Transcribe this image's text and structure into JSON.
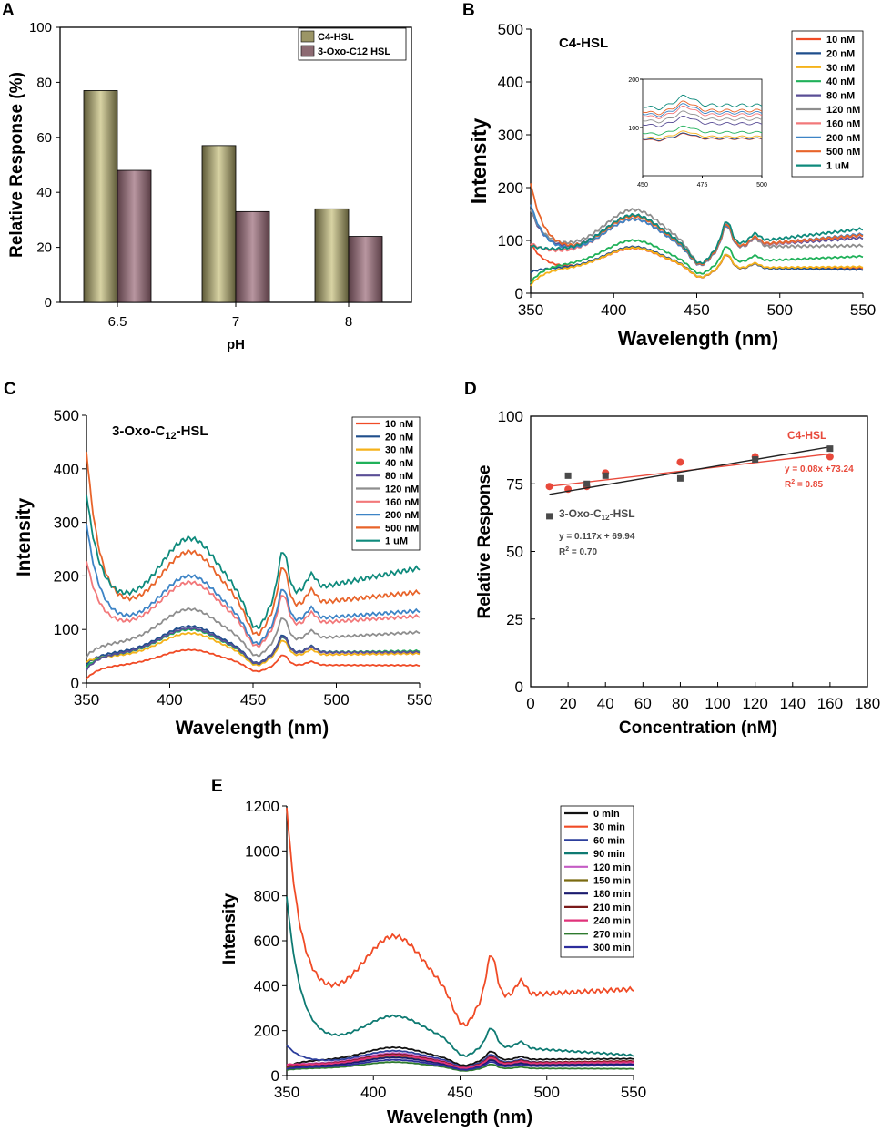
{
  "panel_labels": {
    "a": "A",
    "b": "B",
    "c": "C",
    "d": "D",
    "e": "E"
  },
  "chart_data": [
    {
      "id": "A",
      "type": "bar",
      "title": "",
      "xlabel": "pH",
      "ylabel": "Relative Response (%)",
      "categories": [
        "6.5",
        "7",
        "8"
      ],
      "ylim": [
        0,
        100
      ],
      "yticks": [
        0,
        20,
        40,
        60,
        80,
        100
      ],
      "legend_position": "top-right",
      "series": [
        {
          "name": "C4-HSL",
          "color": "#9b9566",
          "values": [
            77,
            57,
            34
          ]
        },
        {
          "name": "3-Oxo-C12 HSL",
          "color": "#8c6a72",
          "values": [
            48,
            33,
            24
          ]
        }
      ]
    },
    {
      "id": "B",
      "type": "line",
      "title": "C4-HSL",
      "xlabel": "Wavelength (nm)",
      "ylabel": "Intensity",
      "xlim": [
        350,
        550
      ],
      "ylim": [
        0,
        500
      ],
      "xticks": [
        350,
        400,
        450,
        500,
        550
      ],
      "yticks": [
        0,
        100,
        200,
        300,
        400,
        500
      ],
      "legend_position": "top-right",
      "series": [
        {
          "name": "10 nM",
          "color": "#f04b26",
          "start": 95,
          "base": 85,
          "end": 48
        },
        {
          "name": "20 nM",
          "color": "#1f4e8c",
          "start": 40,
          "base": 88,
          "end": 45
        },
        {
          "name": "30 nM",
          "color": "#f5b21a",
          "start": 15,
          "base": 86,
          "end": 50
        },
        {
          "name": "40 nM",
          "color": "#20b15a",
          "start": 20,
          "base": 100,
          "end": 70
        },
        {
          "name": "80 nM",
          "color": "#5a4e96",
          "start": 160,
          "base": 148,
          "end": 105
        },
        {
          "name": "120 nM",
          "color": "#8e8e8e",
          "start": 160,
          "base": 158,
          "end": 90
        },
        {
          "name": "160 nM",
          "color": "#f2787a",
          "start": 95,
          "base": 140,
          "end": 110
        },
        {
          "name": "200 nM",
          "color": "#3d84c6",
          "start": 170,
          "base": 140,
          "end": 112
        },
        {
          "name": "500 nM",
          "color": "#e8642a",
          "start": 210,
          "base": 145,
          "end": 110
        },
        {
          "name": "1 uM",
          "color": "#0e8a7c",
          "start": 90,
          "base": 148,
          "end": 122
        }
      ],
      "inset": {
        "xlim": [
          450,
          500
        ],
        "ylim": [
          0,
          200
        ],
        "xticks": [
          450,
          475,
          500
        ],
        "yticks": [
          100,
          200
        ],
        "values": [
          85,
          86,
          90,
          100,
          120,
          130,
          140,
          145,
          150,
          162
        ]
      }
    },
    {
      "id": "C",
      "type": "line",
      "title_prefix": "3-Oxo-C",
      "title_sub": "12",
      "title_suffix": "-HSL",
      "xlabel": "Wavelength (nm)",
      "ylabel": "Intensity",
      "xlim": [
        350,
        550
      ],
      "ylim": [
        0,
        500
      ],
      "xticks": [
        350,
        400,
        450,
        500,
        550
      ],
      "yticks": [
        0,
        100,
        200,
        300,
        400,
        500
      ],
      "legend_position": "top-right",
      "series": [
        {
          "name": "10 nM",
          "color": "#f04b26",
          "start": 8,
          "base": 62,
          "end": 33
        },
        {
          "name": "20 nM",
          "color": "#1f4e8c",
          "start": 35,
          "base": 106,
          "end": 58
        },
        {
          "name": "30 nM",
          "color": "#f5b21a",
          "start": 40,
          "base": 93,
          "end": 55
        },
        {
          "name": "40 nM",
          "color": "#20b15a",
          "start": 30,
          "base": 100,
          "end": 60
        },
        {
          "name": "80 nM",
          "color": "#5a4e96",
          "start": 25,
          "base": 102,
          "end": 58
        },
        {
          "name": "120 nM",
          "color": "#8e8e8e",
          "start": 50,
          "base": 138,
          "end": 95
        },
        {
          "name": "160 nM",
          "color": "#f2787a",
          "start": 230,
          "base": 188,
          "end": 125
        },
        {
          "name": "200 nM",
          "color": "#3d84c6",
          "start": 300,
          "base": 200,
          "end": 135
        },
        {
          "name": "500 nM",
          "color": "#e8642a",
          "start": 435,
          "base": 245,
          "end": 170
        },
        {
          "name": "1 uM",
          "color": "#0e8a7c",
          "start": 355,
          "base": 270,
          "end": 215
        }
      ]
    },
    {
      "id": "D",
      "type": "scatter",
      "xlabel": "Concentration (nM)",
      "ylabel": "Relative Response",
      "xlim": [
        0,
        180
      ],
      "ylim": [
        0,
        100
      ],
      "xticks": [
        0,
        20,
        40,
        60,
        80,
        100,
        120,
        140,
        160,
        180
      ],
      "yticks": [
        0,
        25,
        50,
        75,
        100
      ],
      "series": [
        {
          "name": "C4-HSL",
          "color": "#e8493b",
          "marker": "circle",
          "x": [
            10,
            20,
            30,
            40,
            80,
            120,
            160
          ],
          "y": [
            74,
            73,
            74,
            79,
            83,
            85,
            85
          ],
          "fit": {
            "slope": 0.08,
            "intercept": 73.24
          },
          "equation": "y = 0.08x +73.24",
          "r2_prefix": "R",
          "r2_sup": "2",
          "r2_suffix": " = 0.85"
        },
        {
          "name_prefix": "3-Oxo-C",
          "name_sub": "12",
          "name_suffix": "-HSL",
          "color": "#4a4a4a",
          "marker": "square",
          "x": [
            10,
            20,
            30,
            40,
            80,
            120,
            160
          ],
          "y": [
            63,
            78,
            75,
            78,
            77,
            84,
            88
          ],
          "fit": {
            "slope": 0.117,
            "intercept": 69.94
          },
          "equation": "y = 0.117x + 69.94",
          "r2_prefix": "R",
          "r2_sup": "2",
          "r2_suffix": " = 0.70"
        }
      ]
    },
    {
      "id": "E",
      "type": "line",
      "xlabel": "Wavelength (nm)",
      "ylabel": "Intensity",
      "xlim": [
        350,
        550
      ],
      "ylim": [
        0,
        1200
      ],
      "xticks": [
        350,
        400,
        450,
        500,
        550
      ],
      "yticks": [
        0,
        200,
        400,
        600,
        800,
        1000,
        1200
      ],
      "legend_position": "top-right",
      "series": [
        {
          "name": "0 min",
          "color": "#111111",
          "start": 40,
          "base": 125,
          "end": 75
        },
        {
          "name": "30 min",
          "color": "#f04b26",
          "start": 1200,
          "base": 620,
          "end": 385
        },
        {
          "name": "60 min",
          "color": "#2c3e9c",
          "start": 135,
          "base": 110,
          "end": 60
        },
        {
          "name": "90 min",
          "color": "#0e7a72",
          "start": 800,
          "base": 265,
          "end": 90
        },
        {
          "name": "120 min",
          "color": "#c45cc4",
          "start": 45,
          "base": 100,
          "end": 55
        },
        {
          "name": "150 min",
          "color": "#7a6a10",
          "start": 35,
          "base": 85,
          "end": 50
        },
        {
          "name": "180 min",
          "color": "#1a1a6e",
          "start": 30,
          "base": 80,
          "end": 50
        },
        {
          "name": "210 min",
          "color": "#7a1a1a",
          "start": 40,
          "base": 95,
          "end": 65
        },
        {
          "name": "240 min",
          "color": "#e0327a",
          "start": 50,
          "base": 90,
          "end": 60
        },
        {
          "name": "270 min",
          "color": "#2e7a2e",
          "start": 25,
          "base": 60,
          "end": 30
        },
        {
          "name": "300 min",
          "color": "#2c2c9c",
          "start": 30,
          "base": 70,
          "end": 45
        }
      ]
    }
  ]
}
